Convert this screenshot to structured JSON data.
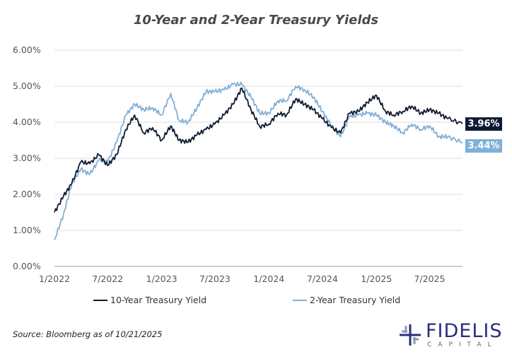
{
  "chart_data": {
    "type": "line",
    "title": "10-Year and 2-Year Treasury Yields",
    "xlabel": "",
    "ylabel": "",
    "ylim": [
      0,
      6
    ],
    "yticks": [
      "0.00%",
      "1.00%",
      "2.00%",
      "3.00%",
      "4.00%",
      "5.00%",
      "6.00%"
    ],
    "xticks": [
      {
        "label": "1/2022",
        "date": "2022-01-01"
      },
      {
        "label": "7/2022",
        "date": "2022-07-01"
      },
      {
        "label": "1/2023",
        "date": "2023-01-01"
      },
      {
        "label": "7/2023",
        "date": "2023-07-01"
      },
      {
        "label": "1/2024",
        "date": "2024-01-01"
      },
      {
        "label": "7/2024",
        "date": "2024-07-01"
      },
      {
        "label": "1/2025",
        "date": "2025-01-01"
      },
      {
        "label": "7/2025",
        "date": "2025-07-01"
      }
    ],
    "grid": true,
    "legend": "bottom",
    "dates": [
      "2022-01-01",
      "2022-02-01",
      "2022-03-01",
      "2022-04-01",
      "2022-05-01",
      "2022-06-01",
      "2022-07-01",
      "2022-08-01",
      "2022-09-01",
      "2022-10-01",
      "2022-11-01",
      "2022-12-01",
      "2023-01-01",
      "2023-02-01",
      "2023-03-01",
      "2023-04-01",
      "2023-05-01",
      "2023-06-01",
      "2023-07-01",
      "2023-08-01",
      "2023-09-01",
      "2023-10-01",
      "2023-11-01",
      "2023-12-01",
      "2024-01-01",
      "2024-02-01",
      "2024-03-01",
      "2024-04-01",
      "2024-05-01",
      "2024-06-01",
      "2024-07-01",
      "2024-08-01",
      "2024-09-01",
      "2024-10-01",
      "2024-11-01",
      "2024-12-01",
      "2025-01-01",
      "2025-02-01",
      "2025-03-01",
      "2025-04-01",
      "2025-05-01",
      "2025-06-01",
      "2025-07-01",
      "2025-08-01",
      "2025-09-01",
      "2025-10-21"
    ],
    "series": [
      {
        "name": "10-Year Treasury Yield",
        "color": "#111a33",
        "end_label": "3.96%",
        "values": [
          1.5,
          1.95,
          2.3,
          2.9,
          2.85,
          3.1,
          2.8,
          3.1,
          3.8,
          4.2,
          3.7,
          3.85,
          3.5,
          3.9,
          3.5,
          3.45,
          3.65,
          3.8,
          3.95,
          4.2,
          4.5,
          4.95,
          4.35,
          3.88,
          3.95,
          4.25,
          4.2,
          4.65,
          4.5,
          4.35,
          4.1,
          3.85,
          3.7,
          4.25,
          4.3,
          4.55,
          4.75,
          4.3,
          4.2,
          4.3,
          4.45,
          4.25,
          4.35,
          4.25,
          4.1,
          3.96
        ]
      },
      {
        "name": "2-Year Treasury Yield",
        "color": "#7fb0d8",
        "end_label": "3.44%",
        "values": [
          0.73,
          1.45,
          2.3,
          2.7,
          2.55,
          2.95,
          2.9,
          3.45,
          4.2,
          4.5,
          4.35,
          4.4,
          4.2,
          4.8,
          4.05,
          4.0,
          4.4,
          4.85,
          4.85,
          4.9,
          5.05,
          5.05,
          4.7,
          4.25,
          4.25,
          4.6,
          4.6,
          5.0,
          4.9,
          4.7,
          4.3,
          3.9,
          3.6,
          4.15,
          4.2,
          4.25,
          4.2,
          4.0,
          3.9,
          3.7,
          3.95,
          3.8,
          3.9,
          3.6,
          3.6,
          3.44
        ]
      }
    ]
  },
  "source": "Source: Bloomberg as of 10/21/2025",
  "logo": {
    "name": "FIDELIS",
    "sub": "CAPITAL"
  }
}
